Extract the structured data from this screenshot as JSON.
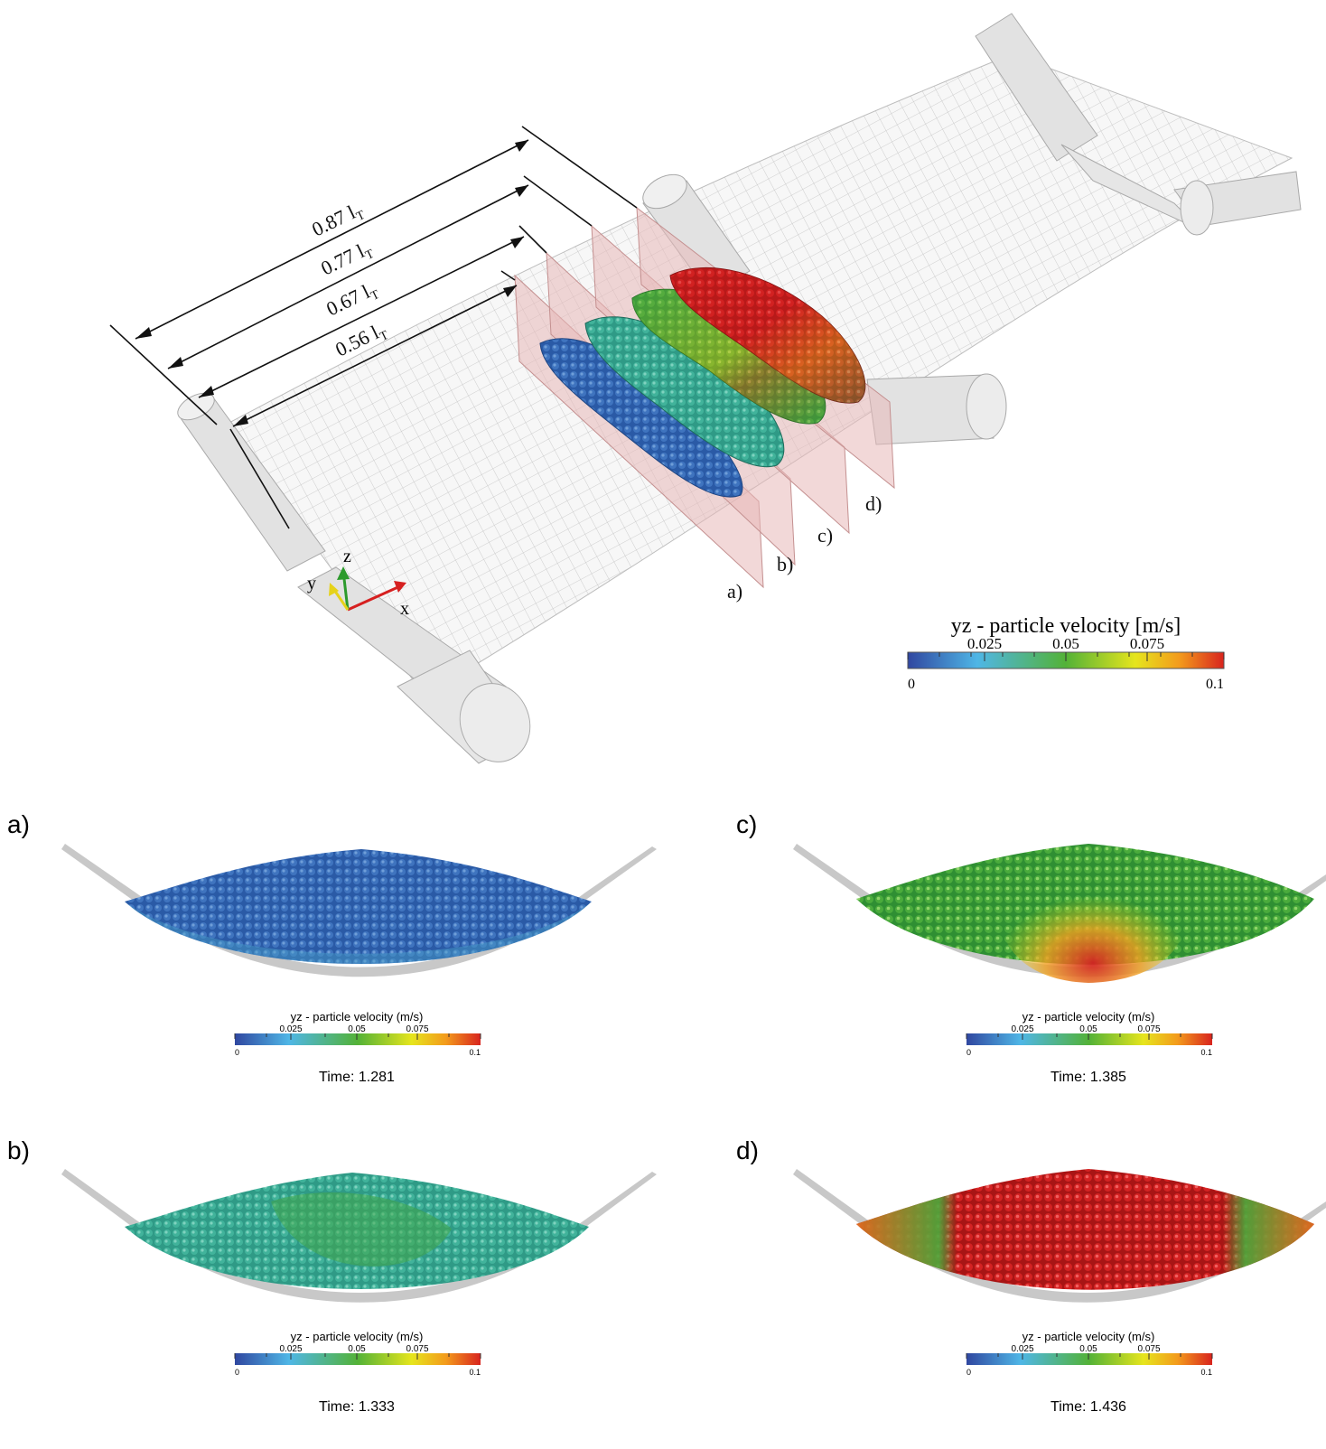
{
  "top": {
    "dimensions": [
      "0.87 l",
      "0.77 l",
      "0.67 l",
      "0.56 l"
    ],
    "dimension_subscript": "T",
    "slice_labels": [
      "a)",
      "b)",
      "c)",
      "d)"
    ],
    "axes": {
      "x": "x",
      "y": "y",
      "z": "z"
    },
    "legend": {
      "title": "yz - particle velocity [m/s]",
      "ticks": [
        "0.025",
        "0.05",
        "0.075"
      ],
      "min": "0",
      "max": "0.1"
    }
  },
  "panels": [
    {
      "label": "a)",
      "legend_title": "yz - particle velocity (m/s)",
      "ticks": [
        "0.025",
        "0.05",
        "0.075"
      ],
      "min": "0",
      "max": "0.1",
      "time": "Time: 1.281"
    },
    {
      "label": "b)",
      "legend_title": "yz - particle velocity (m/s)",
      "ticks": [
        "0.025",
        "0.05",
        "0.075"
      ],
      "min": "0",
      "max": "0.1",
      "time": "Time: 1.333"
    },
    {
      "label": "c)",
      "legend_title": "yz - particle velocity (m/s)",
      "ticks": [
        "0.025",
        "0.05",
        "0.075"
      ],
      "min": "0",
      "max": "0.1",
      "time": "Time: 1.385"
    },
    {
      "label": "d)",
      "legend_title": "yz - particle velocity (m/s)",
      "ticks": [
        "0.025",
        "0.05",
        "0.075"
      ],
      "min": "0",
      "max": "0.1",
      "time": "Time: 1.436"
    }
  ],
  "colors": {
    "scale": [
      "#3b4cc0",
      "#4fb6e6",
      "#4fb03c",
      "#e7e21e",
      "#f08a1c",
      "#d8281f"
    ],
    "blue": "#2a5fa8",
    "cyan_green": "#3fae9a",
    "green": "#44a84a",
    "red": "#cf2020",
    "slice_plane": "#e8b8b8",
    "pipe": "#dcdcdc",
    "axis_x": "#d62020",
    "axis_y": "#e6d21a",
    "axis_z": "#2c9a2c"
  }
}
